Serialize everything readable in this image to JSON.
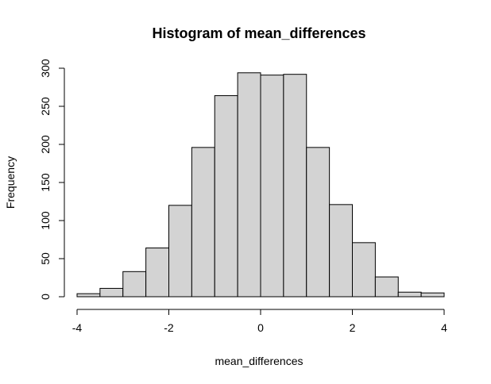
{
  "chart_data": {
    "type": "bar",
    "title": "Histogram of mean_differences",
    "xlabel": "mean_differences",
    "ylabel": "Frequency",
    "bin_width": 0.5,
    "bins": [
      {
        "x0": -4.0,
        "x1": -3.5,
        "count": 4
      },
      {
        "x0": -3.5,
        "x1": -3.0,
        "count": 11
      },
      {
        "x0": -3.0,
        "x1": -2.5,
        "count": 33
      },
      {
        "x0": -2.5,
        "x1": -2.0,
        "count": 64
      },
      {
        "x0": -2.0,
        "x1": -1.5,
        "count": 120
      },
      {
        "x0": -1.5,
        "x1": -1.0,
        "count": 196
      },
      {
        "x0": -1.0,
        "x1": -0.5,
        "count": 264
      },
      {
        "x0": -0.5,
        "x1": 0.0,
        "count": 294
      },
      {
        "x0": 0.0,
        "x1": 0.5,
        "count": 291
      },
      {
        "x0": 0.5,
        "x1": 1.0,
        "count": 292
      },
      {
        "x0": 1.0,
        "x1": 1.5,
        "count": 196
      },
      {
        "x0": 1.5,
        "x1": 2.0,
        "count": 121
      },
      {
        "x0": 2.0,
        "x1": 2.5,
        "count": 71
      },
      {
        "x0": 2.5,
        "x1": 3.0,
        "count": 26
      },
      {
        "x0": 3.0,
        "x1": 3.5,
        "count": 6
      },
      {
        "x0": 3.5,
        "x1": 4.0,
        "count": 5
      }
    ],
    "xlim": [
      -4,
      4
    ],
    "ylim": [
      0,
      300
    ],
    "x_ticks": [
      -4,
      -2,
      0,
      2,
      4
    ],
    "y_ticks": [
      0,
      50,
      100,
      150,
      200,
      250,
      300
    ],
    "grid": false,
    "bar_fill": "#d3d3d3",
    "bar_stroke": "#000000"
  }
}
